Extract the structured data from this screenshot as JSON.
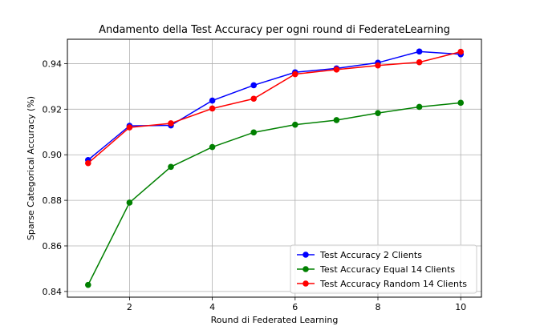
{
  "chart_data": {
    "type": "line",
    "title": "Andamento della Test Accuracy per ogni round di FederateLearning",
    "xlabel": "Round di Federated Learning",
    "ylabel": "Sparse Categorical Accuracy (%)",
    "xlim": [
      0.5,
      10.5
    ],
    "ylim": [
      0.8375,
      0.9507
    ],
    "xticks": [
      2,
      4,
      6,
      8,
      10
    ],
    "yticks": [
      0.84,
      0.86,
      0.88,
      0.9,
      0.92,
      0.94
    ],
    "ytick_labels": [
      "0.84",
      "0.86",
      "0.88",
      "0.90",
      "0.92",
      "0.94"
    ],
    "grid": true,
    "legend_position": "lower-right",
    "x": [
      1,
      2,
      3,
      4,
      5,
      6,
      7,
      8,
      9,
      10
    ],
    "series": [
      {
        "name": "Test Accuracy 2 Clients",
        "color": "#0000ff",
        "values": [
          0.8977,
          0.9127,
          0.9129,
          0.9238,
          0.9305,
          0.9362,
          0.9379,
          0.9404,
          0.9453,
          0.9441
        ]
      },
      {
        "name": "Test Accuracy Equal 14 Clients",
        "color": "#008000",
        "values": [
          0.8429,
          0.879,
          0.8947,
          0.9034,
          0.9098,
          0.9132,
          0.9152,
          0.9183,
          0.921,
          0.9228
        ]
      },
      {
        "name": "Test Accuracy Random 14 Clients",
        "color": "#ff0000",
        "values": [
          0.8963,
          0.912,
          0.9138,
          0.9203,
          0.9246,
          0.9354,
          0.9374,
          0.9392,
          0.9406,
          0.9452
        ]
      }
    ]
  }
}
